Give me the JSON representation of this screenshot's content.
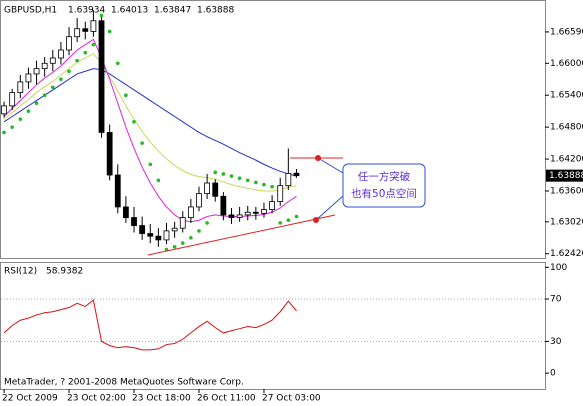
{
  "chart_data": {
    "type": "candlestick",
    "symbol": "GBPUSD,H1",
    "up_color": "#ffffff",
    "down_color": "#000000",
    "xlim": [
      -0.5,
      66.6
    ],
    "xticks": [
      {
        "value": 0,
        "label": "22 Oct 2009"
      },
      {
        "value": 8,
        "label": "23 Oct 02:00"
      },
      {
        "value": 16,
        "label": "23 Oct 18:00"
      },
      {
        "value": 24,
        "label": "26 Oct 11:00"
      },
      {
        "value": 32,
        "label": "27 Oct 03:00"
      }
    ],
    "ylim": [
      1.6234,
      1.6719
    ],
    "yticks": [
      {
        "value": 1.6659,
        "label": "1.66590"
      },
      {
        "value": 1.66,
        "label": "1.66000"
      },
      {
        "value": 1.654,
        "label": "1.65400"
      },
      {
        "value": 1.648,
        "label": "1.64800"
      },
      {
        "value": 1.642,
        "label": "1.64200"
      },
      {
        "value": 1.636,
        "label": "1.63600"
      },
      {
        "value": 1.6302,
        "label": "1.63020"
      },
      {
        "value": 1.6242,
        "label": "1.62420"
      }
    ],
    "candles": [
      [
        1.6505,
        1.6528,
        1.6498,
        1.652
      ],
      [
        1.652,
        1.6552,
        1.6512,
        1.6545
      ],
      [
        1.6545,
        1.6578,
        1.6535,
        1.6565
      ],
      [
        1.6565,
        1.6592,
        1.6552,
        1.658
      ],
      [
        1.658,
        1.6605,
        1.656,
        1.659
      ],
      [
        1.659,
        1.6612,
        1.6575,
        1.66
      ],
      [
        1.66,
        1.6625,
        1.6585,
        1.661
      ],
      [
        1.661,
        1.664,
        1.6598,
        1.6625
      ],
      [
        1.6625,
        1.6668,
        1.6615,
        1.665
      ],
      [
        1.665,
        1.6685,
        1.664,
        1.6665
      ],
      [
        1.6665,
        1.6678,
        1.6645,
        1.666
      ],
      [
        1.666,
        1.67,
        1.665,
        1.668
      ],
      [
        1.668,
        1.6688,
        1.646,
        1.647
      ],
      [
        1.647,
        1.6485,
        1.638,
        1.639
      ],
      [
        1.639,
        1.641,
        1.6318,
        1.633
      ],
      [
        1.633,
        1.635,
        1.63,
        1.631
      ],
      [
        1.631,
        1.633,
        1.6282,
        1.6295
      ],
      [
        1.6295,
        1.6312,
        1.6268,
        1.628
      ],
      [
        1.628,
        1.6298,
        1.6262,
        1.6275
      ],
      [
        1.6275,
        1.629,
        1.6255,
        1.6268
      ],
      [
        1.6268,
        1.63,
        1.626,
        1.6285
      ],
      [
        1.6285,
        1.6302,
        1.6272,
        1.629
      ],
      [
        1.629,
        1.6322,
        1.6282,
        1.631
      ],
      [
        1.631,
        1.6345,
        1.63,
        1.633
      ],
      [
        1.633,
        1.6368,
        1.6322,
        1.6355
      ],
      [
        1.6355,
        1.6392,
        1.6345,
        1.6375
      ],
      [
        1.6375,
        1.6382,
        1.634,
        1.635
      ],
      [
        1.635,
        1.6358,
        1.6305,
        1.6315
      ],
      [
        1.6315,
        1.6328,
        1.6298,
        1.631
      ],
      [
        1.631,
        1.633,
        1.6302,
        1.6315
      ],
      [
        1.6315,
        1.6332,
        1.6305,
        1.632
      ],
      [
        1.632,
        1.633,
        1.6306,
        1.6318
      ],
      [
        1.6318,
        1.6338,
        1.631,
        1.6325
      ],
      [
        1.6325,
        1.6352,
        1.6318,
        1.634
      ],
      [
        1.634,
        1.6385,
        1.6332,
        1.637
      ],
      [
        1.637,
        1.644,
        1.6362,
        1.6393
      ],
      [
        1.63934,
        1.64013,
        1.63847,
        1.63888
      ]
    ],
    "moving_averages": [
      {
        "color": "#1f2fd0",
        "values": [
          1.649,
          1.65,
          1.651,
          1.652,
          1.653,
          1.654,
          1.655,
          1.656,
          1.657,
          1.658,
          1.6585,
          1.659,
          1.6588,
          1.658,
          1.657,
          1.656,
          1.655,
          1.654,
          1.653,
          1.652,
          1.651,
          1.65,
          1.649,
          1.648,
          1.647,
          1.6462,
          1.6455,
          1.6448,
          1.644,
          1.6432,
          1.6425,
          1.6418,
          1.641,
          1.6403,
          1.6397,
          1.6392,
          1.6388
        ]
      },
      {
        "color": "#c8d85a",
        "values": [
          1.6495,
          1.6507,
          1.652,
          1.6532,
          1.6545,
          1.6556,
          1.6566,
          1.6578,
          1.659,
          1.6602,
          1.661,
          1.6618,
          1.66,
          1.6575,
          1.6548,
          1.652,
          1.6495,
          1.6472,
          1.6452,
          1.6435,
          1.642,
          1.6408,
          1.6398,
          1.6391,
          1.6387,
          1.6385,
          1.6382,
          1.6377,
          1.6372,
          1.6368,
          1.6365,
          1.6362,
          1.636,
          1.636,
          1.6362,
          1.6367,
          1.637
        ]
      },
      {
        "color": "#e020e0",
        "values": [
          1.65,
          1.6515,
          1.653,
          1.6545,
          1.656,
          1.6572,
          1.6583,
          1.6595,
          1.661,
          1.6625,
          1.6635,
          1.6645,
          1.661,
          1.657,
          1.6525,
          1.648,
          1.644,
          1.6405,
          1.6375,
          1.635,
          1.633,
          1.6315,
          1.6305,
          1.6302,
          1.6305,
          1.6312,
          1.6315,
          1.6313,
          1.6312,
          1.6312,
          1.6313,
          1.6314,
          1.6316,
          1.632,
          1.6328,
          1.634,
          1.635
        ]
      }
    ],
    "sar": {
      "color": "#22bb22",
      "values": [
        1.647,
        1.648,
        1.6495,
        1.651,
        1.6525,
        1.654,
        1.6555,
        1.657,
        1.6585,
        1.6605,
        1.662,
        1.6635,
        1.669,
        1.666,
        1.66,
        1.654,
        1.649,
        1.645,
        1.641,
        1.638,
        1.625,
        1.6255,
        1.6262,
        1.6272,
        1.6285,
        1.63,
        1.6395,
        1.6392,
        1.6388,
        1.6384,
        1.638,
        1.6376,
        1.6372,
        1.6368,
        1.63,
        1.6305,
        1.6312
      ]
    },
    "rsi": {
      "title": "RSI(12)",
      "color": "#dd1010",
      "ylim": [
        -15,
        105
      ],
      "yticks": [
        0,
        30,
        70,
        100
      ],
      "values": [
        38,
        45,
        50,
        52,
        55,
        57,
        58,
        60,
        62,
        66,
        63,
        69,
        30,
        26,
        24,
        25,
        24,
        22,
        22,
        23,
        27,
        28,
        32,
        38,
        44,
        49,
        43,
        38,
        40,
        42,
        44,
        43,
        46,
        50,
        58,
        68,
        58.9382
      ]
    },
    "annotations": [
      "任一方突破",
      "也有50点空间"
    ],
    "copyright": "MetaTrader, ? 2001-2008 MetaQuotes Software Corp."
  }
}
